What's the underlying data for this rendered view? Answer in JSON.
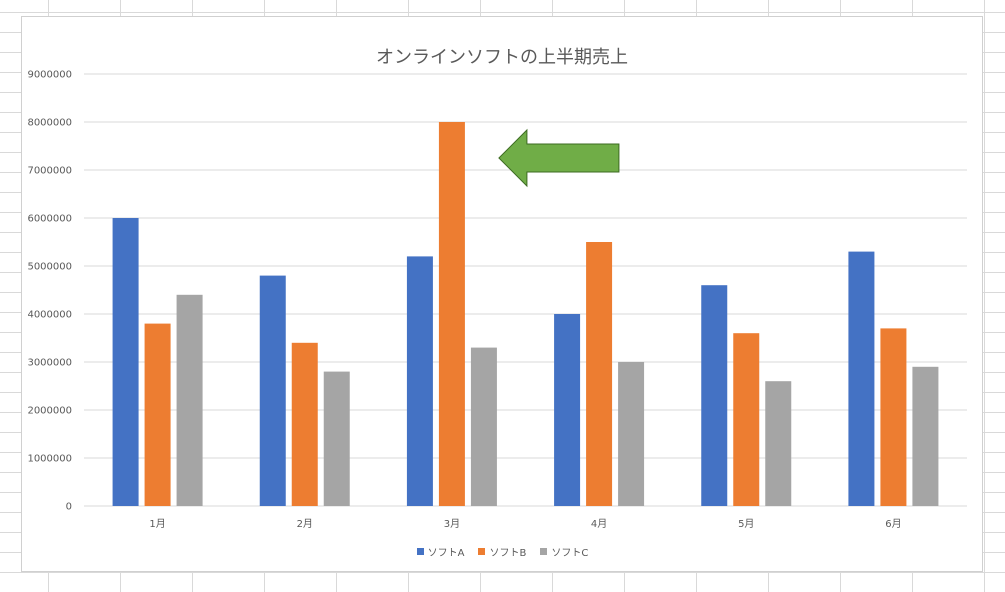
{
  "chart_data": {
    "type": "bar",
    "title": "オンラインソフトの上半期売上",
    "categories": [
      "1月",
      "2月",
      "3月",
      "4月",
      "5月",
      "6月"
    ],
    "series": [
      {
        "name": "ソフトA",
        "color": "#4472c4",
        "values": [
          6000000,
          4800000,
          5200000,
          4000000,
          4600000,
          5300000
        ]
      },
      {
        "name": "ソフトB",
        "color": "#ed7d31",
        "values": [
          3800000,
          3400000,
          8000000,
          5500000,
          3600000,
          3700000
        ]
      },
      {
        "name": "ソフトC",
        "color": "#a5a5a5",
        "values": [
          4400000,
          2800000,
          3300000,
          3000000,
          2600000,
          2900000
        ]
      }
    ],
    "ylim": [
      0,
      9000000
    ],
    "yticks": [
      0,
      1000000,
      2000000,
      3000000,
      4000000,
      5000000,
      6000000,
      7000000,
      8000000,
      9000000
    ],
    "grid": true,
    "legend_position": "bottom",
    "annotation": {
      "shape": "left-arrow",
      "color": "#70ad47",
      "points_to_category": "3月",
      "points_to_series": "ソフトB"
    }
  }
}
